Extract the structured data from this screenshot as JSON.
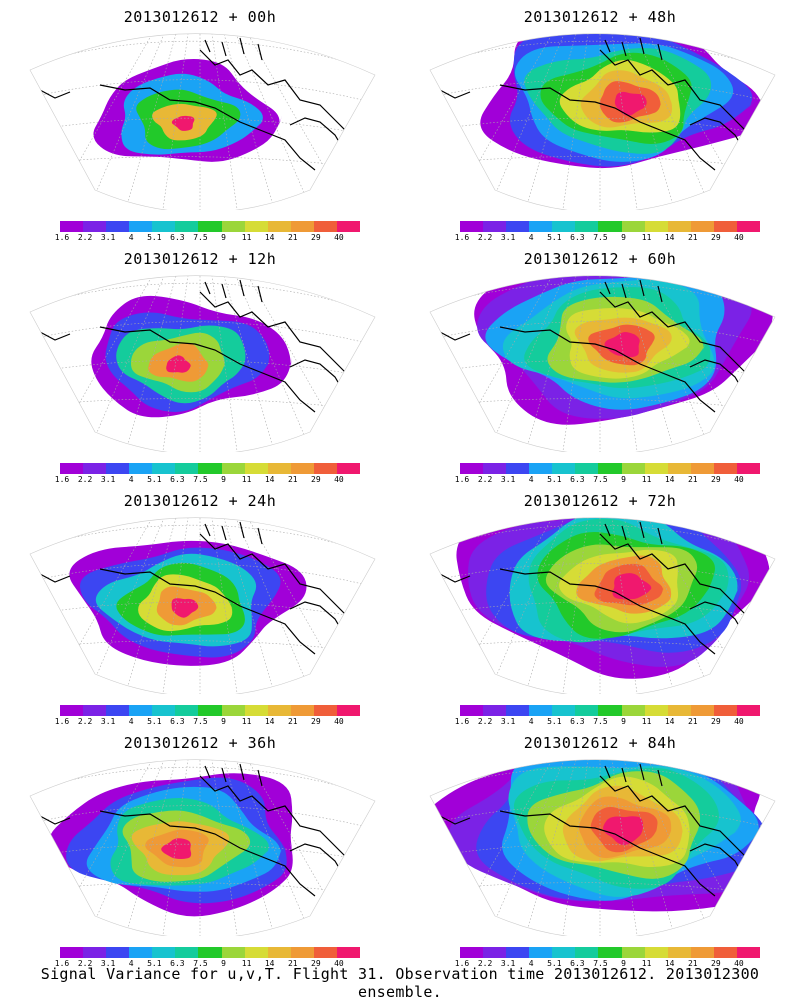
{
  "panels": [
    {
      "title": "2013012612 + 00h",
      "lead_hours": 0
    },
    {
      "title": "2013012612 + 48h",
      "lead_hours": 48
    },
    {
      "title": "2013012612 + 12h",
      "lead_hours": 12
    },
    {
      "title": "2013012612 + 60h",
      "lead_hours": 60
    },
    {
      "title": "2013012612 + 24h",
      "lead_hours": 24
    },
    {
      "title": "2013012612 + 72h",
      "lead_hours": 72
    },
    {
      "title": "2013012612 + 36h",
      "lead_hours": 36
    },
    {
      "title": "2013012612 + 84h",
      "lead_hours": 84
    }
  ],
  "colorbar": {
    "labels": [
      "1.6",
      "2.2",
      "3.1",
      "4",
      "5.1",
      "6.3",
      "7.5",
      "9",
      "11",
      "14",
      "21",
      "29",
      "40"
    ],
    "colors": [
      "#a100d8",
      "#7b22e6",
      "#3c46f2",
      "#1aa3f5",
      "#17c3cf",
      "#14cc9c",
      "#22c92a",
      "#9bd63a",
      "#d6dc36",
      "#e8b836",
      "#ef9a36",
      "#f05e3a",
      "#f0186e"
    ]
  },
  "footer": "Signal Variance for u,v,T. Flight 31. Observation time 2013012612. 2013012300 ensemble."
}
